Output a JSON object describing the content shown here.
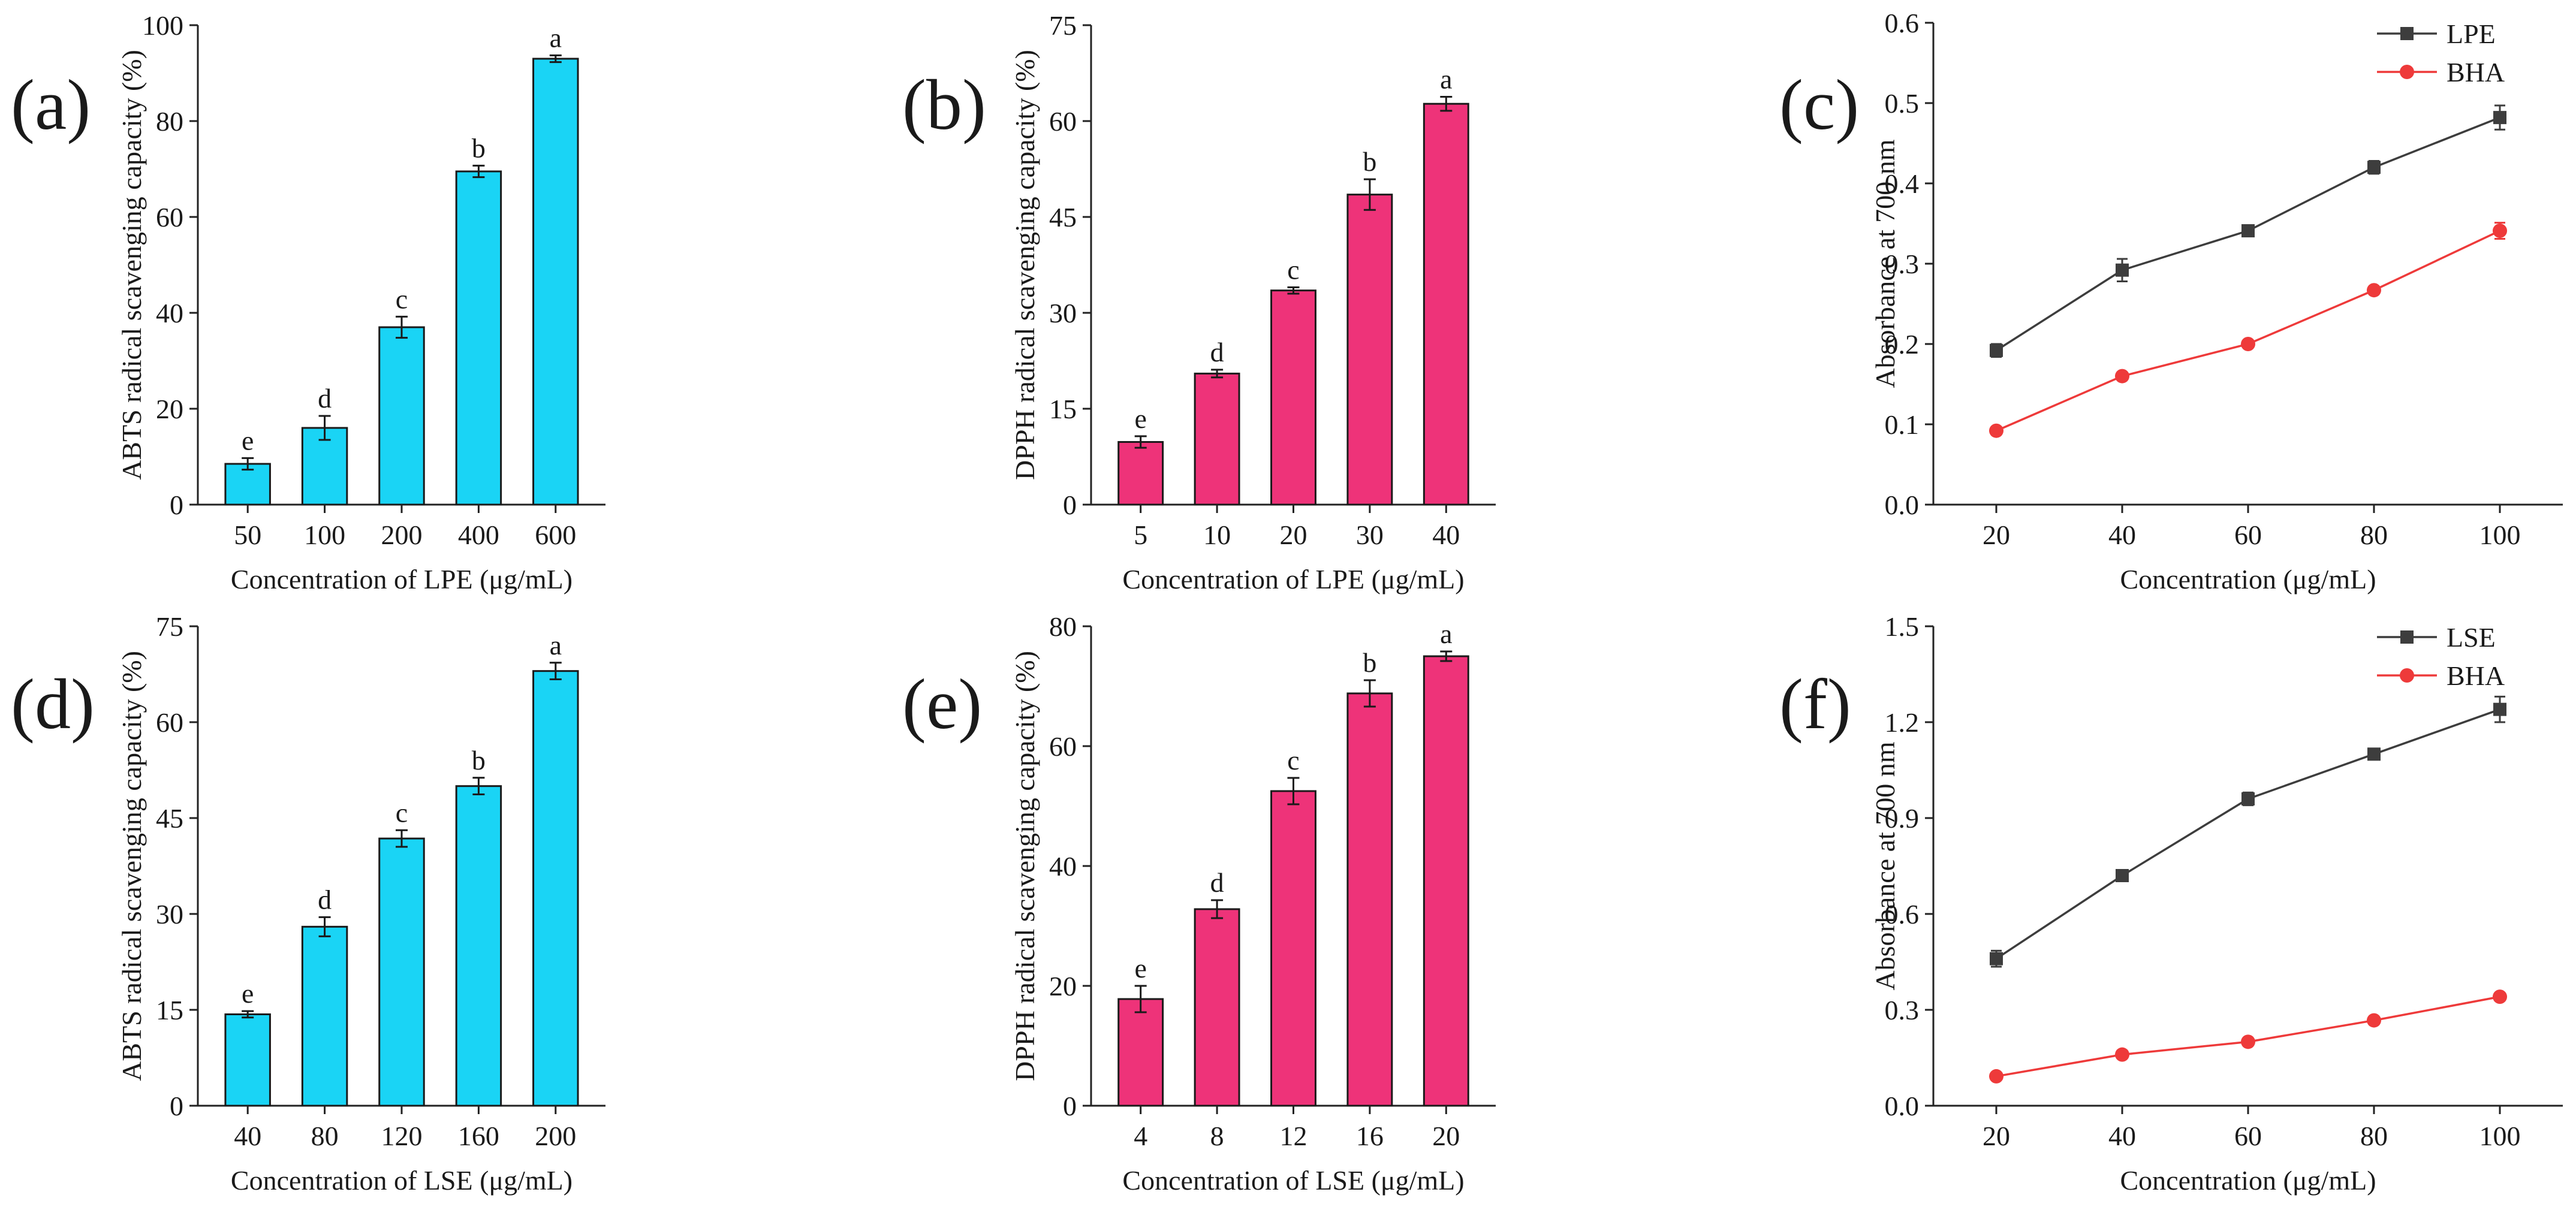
{
  "chart_data": [
    {
      "panel_label": "(a)",
      "type": "bar",
      "title": "",
      "xlabel": "Concentration of LPE (μg/mL)",
      "ylabel": "ABTS radical scavenging capacity (%)",
      "categories": [
        "50",
        "100",
        "200",
        "400",
        "600"
      ],
      "values": [
        8.5,
        16,
        37,
        69.5,
        93
      ],
      "errors": [
        1.2,
        2.5,
        2.2,
        1.2,
        0.7
      ],
      "letters": [
        "e",
        "d",
        "c",
        "b",
        "a"
      ],
      "ylim": [
        0,
        100
      ],
      "yticks": [
        0,
        20,
        40,
        60,
        80,
        100
      ],
      "ytick_labels": [
        "0",
        "20",
        "40",
        "60",
        "80",
        "100"
      ],
      "bar_color": "#1ad4f5",
      "grid": false
    },
    {
      "panel_label": "(b)",
      "type": "bar",
      "title": "",
      "xlabel": "Concentration of LPE (μg/mL)",
      "ylabel": "DPPH radical scavenging capacity (%)",
      "categories": [
        "5",
        "10",
        "20",
        "30",
        "40"
      ],
      "values": [
        9.8,
        20.5,
        33.5,
        48.5,
        62.7
      ],
      "errors": [
        0.9,
        0.6,
        0.5,
        2.4,
        1.1
      ],
      "letters": [
        "e",
        "d",
        "c",
        "b",
        "a"
      ],
      "ylim": [
        0,
        75
      ],
      "yticks": [
        0,
        15,
        30,
        45,
        60,
        75
      ],
      "ytick_labels": [
        "0",
        "15",
        "30",
        "45",
        "60",
        "75"
      ],
      "bar_color": "#ee3379",
      "grid": false
    },
    {
      "panel_label": "(c)",
      "type": "line",
      "title": "",
      "xlabel": "Concentration (μg/mL)",
      "ylabel": "Absorbance at 700 nm",
      "x": [
        20,
        40,
        60,
        80,
        100
      ],
      "xticks": [
        20,
        40,
        60,
        80,
        100
      ],
      "xtick_labels": [
        "20",
        "40",
        "60",
        "80",
        "100"
      ],
      "xlim": [
        10,
        110
      ],
      "ylim": [
        0,
        0.6
      ],
      "yticks": [
        0,
        0.1,
        0.2,
        0.3,
        0.4,
        0.5,
        0.6
      ],
      "ytick_labels": [
        "0.0",
        "0.1",
        "0.2",
        "0.3",
        "0.4",
        "0.5",
        "0.6"
      ],
      "legend_position": "top-right",
      "grid": false,
      "series": [
        {
          "name": "LPE",
          "values": [
            0.192,
            0.292,
            0.341,
            0.42,
            0.482
          ],
          "errors": [
            0.008,
            0.014,
            0.004,
            0.008,
            0.015
          ],
          "color": "#3d3d3d",
          "marker": "square"
        },
        {
          "name": "BHA",
          "values": [
            0.092,
            0.16,
            0.2,
            0.267,
            0.341
          ],
          "errors": [
            0.003,
            0.003,
            0.003,
            0.003,
            0.01
          ],
          "color": "#ee3a3a",
          "marker": "circle"
        }
      ]
    },
    {
      "panel_label": "(d)",
      "type": "bar",
      "title": "",
      "xlabel": "Concentration of LSE (μg/mL)",
      "ylabel": "ABTS radical scavenging capacity (%)",
      "categories": [
        "40",
        "80",
        "120",
        "160",
        "200"
      ],
      "values": [
        14.3,
        28,
        41.8,
        50,
        68
      ],
      "errors": [
        0.5,
        1.5,
        1.3,
        1.3,
        1.3
      ],
      "letters": [
        "e",
        "d",
        "c",
        "b",
        "a"
      ],
      "ylim": [
        0,
        75
      ],
      "yticks": [
        0,
        15,
        30,
        45,
        60,
        75
      ],
      "ytick_labels": [
        "0",
        "15",
        "30",
        "45",
        "60",
        "75"
      ],
      "bar_color": "#1ad4f5",
      "grid": false
    },
    {
      "panel_label": "(e)",
      "type": "bar",
      "title": "",
      "xlabel": "Concentration of LSE (μg/mL)",
      "ylabel": "DPPH radical scavenging capacity (%)",
      "categories": [
        "4",
        "8",
        "12",
        "16",
        "20"
      ],
      "values": [
        17.8,
        32.8,
        52.5,
        68.8,
        75
      ],
      "errors": [
        2.2,
        1.5,
        2.2,
        2.2,
        0.8
      ],
      "letters": [
        "e",
        "d",
        "c",
        "b",
        "a"
      ],
      "ylim": [
        0,
        80
      ],
      "yticks": [
        0,
        20,
        40,
        60,
        80
      ],
      "ytick_labels": [
        "0",
        "20",
        "40",
        "60",
        "80"
      ],
      "bar_color": "#ee3379",
      "grid": false
    },
    {
      "panel_label": "(f)",
      "type": "line",
      "title": "",
      "xlabel": "Concentration (μg/mL)",
      "ylabel": "Absorbance at 700 nm",
      "x": [
        20,
        40,
        60,
        80,
        100
      ],
      "xticks": [
        20,
        40,
        60,
        80,
        100
      ],
      "xtick_labels": [
        "20",
        "40",
        "60",
        "80",
        "100"
      ],
      "xlim": [
        10,
        110
      ],
      "ylim": [
        0,
        1.5
      ],
      "yticks": [
        0,
        0.3,
        0.6,
        0.9,
        1.2,
        1.5
      ],
      "ytick_labels": [
        "0.0",
        "0.3",
        "0.6",
        "0.9",
        "1.2",
        "1.5"
      ],
      "legend_position": "top-right",
      "grid": false,
      "series": [
        {
          "name": "LSE",
          "values": [
            0.46,
            0.72,
            0.96,
            1.1,
            1.24
          ],
          "errors": [
            0.025,
            0.015,
            0.02,
            0.015,
            0.04
          ],
          "color": "#3d3d3d",
          "marker": "square"
        },
        {
          "name": "BHA",
          "values": [
            0.092,
            0.16,
            0.2,
            0.267,
            0.341
          ],
          "errors": [
            0.005,
            0.005,
            0.005,
            0.005,
            0.008
          ],
          "color": "#ee3a3a",
          "marker": "circle"
        }
      ]
    }
  ]
}
